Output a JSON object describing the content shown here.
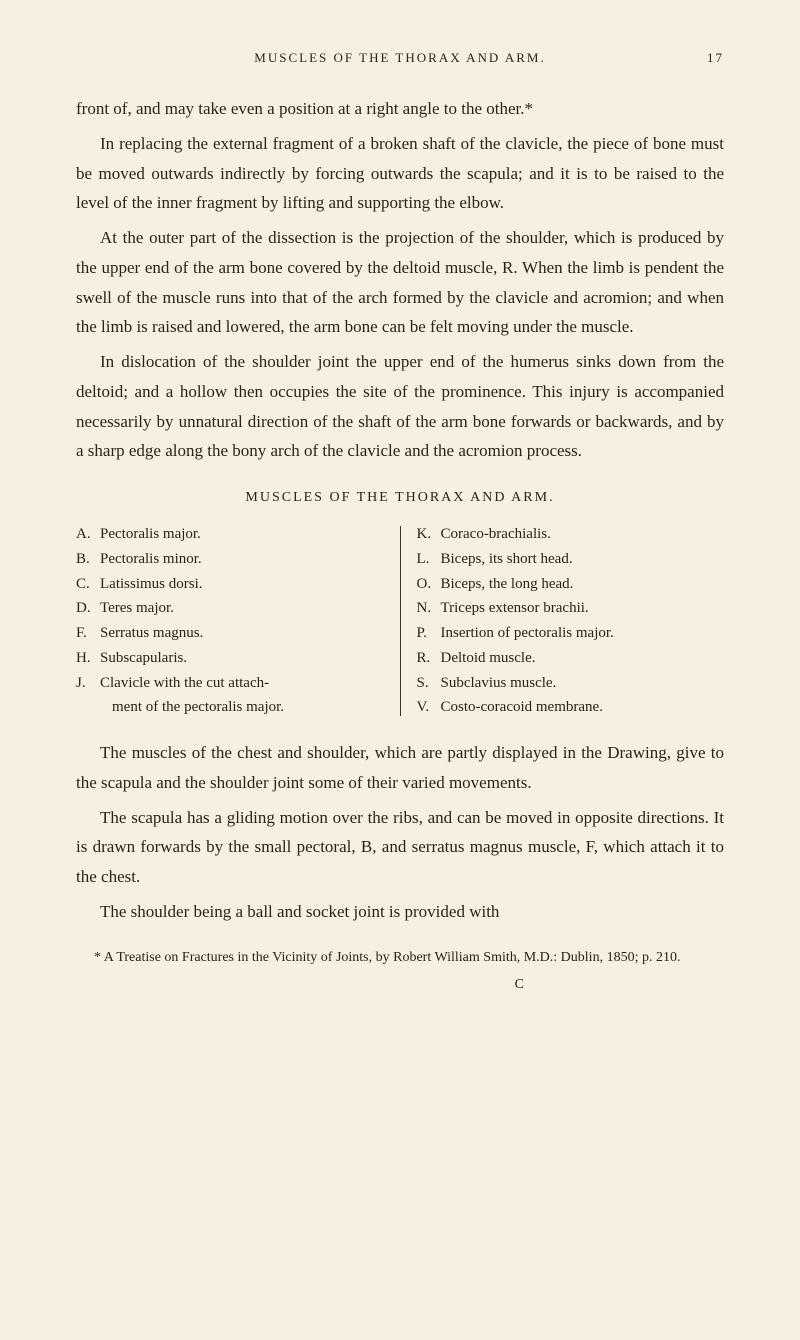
{
  "colors": {
    "background": "#f7f0e0",
    "text": "#2a2318",
    "divider": "#3a3328"
  },
  "typography": {
    "body_font_family": "Georgia, 'Times New Roman', serif",
    "body_fontsize": 17,
    "body_lineheight": 1.75,
    "header_fontsize": 13,
    "header_letterspacing": 2,
    "list_fontsize": 15,
    "footnote_fontsize": 14
  },
  "header": {
    "title": "MUSCLES OF THE THORAX AND ARM.",
    "page_number": "17"
  },
  "paragraphs": {
    "p1": "front of, and may take even a position at a right angle to the other.*",
    "p2": "In replacing the external fragment of a broken shaft of the clavicle, the piece of bone must be moved outwards indirectly by forcing outwards the scapula; and it is to be raised to the level of the inner fragment by lifting and supporting the elbow.",
    "p3": "At the outer part of the dissection is the projection of the shoulder, which is produced by the upper end of the arm bone covered by the deltoid muscle, R. When the limb is pendent the swell of the muscle runs into that of the arch formed by the clavicle and acromion; and when the limb is raised and lowered, the arm bone can be felt moving under the muscle.",
    "p4": "In dislocation of the shoulder joint the upper end of the humerus sinks down from the deltoid; and a hollow then occupies the site of the prominence. This injury is accompanied necessarily by unnatural direction of the shaft of the arm bone forwards or backwards, and by a sharp edge along the bony arch of the clavicle and the acromion process.",
    "p5": "The muscles of the chest and shoulder, which are partly displayed in the Drawing, give to the scapula and the shoulder joint some of their varied movements.",
    "p6": "The scapula has a gliding motion over the ribs, and can be moved in opposite directions. It is drawn forwards by the small pectoral, B, and serratus magnus muscle, F, which attach it to the chest.",
    "p7": "The shoulder being a ball and socket joint is provided with"
  },
  "section_heading": "MUSCLES OF THE THORAX AND ARM.",
  "list": {
    "left": [
      {
        "letter": "A.",
        "text": "Pectoralis major."
      },
      {
        "letter": "B.",
        "text": "Pectoralis minor."
      },
      {
        "letter": "C.",
        "text": "Latissimus dorsi."
      },
      {
        "letter": "D.",
        "text": "Teres major."
      },
      {
        "letter": "F.",
        "text": "Serratus magnus."
      },
      {
        "letter": "H.",
        "text": "Subscapularis."
      },
      {
        "letter": "J.",
        "text": "Clavicle with the cut attach-"
      },
      {
        "letter": "",
        "text": "ment of the pectoralis major.",
        "sub": true
      }
    ],
    "right": [
      {
        "letter": "K.",
        "text": "Coraco-brachialis."
      },
      {
        "letter": "L.",
        "text": "Biceps, its short head."
      },
      {
        "letter": "O.",
        "text": "Biceps, the long head."
      },
      {
        "letter": "N.",
        "text": "Triceps extensor brachii."
      },
      {
        "letter": "P.",
        "text": "Insertion of pectoralis major."
      },
      {
        "letter": "R.",
        "text": "Deltoid muscle."
      },
      {
        "letter": "S.",
        "text": "Subclavius muscle."
      },
      {
        "letter": "V.",
        "text": "Costo-coracoid membrane."
      }
    ]
  },
  "footnote": "* A Treatise on Fractures in the Vicinity of Joints, by Robert William Smith, M.D.: Dublin, 1850; p. 210.",
  "signature_letter": "C"
}
